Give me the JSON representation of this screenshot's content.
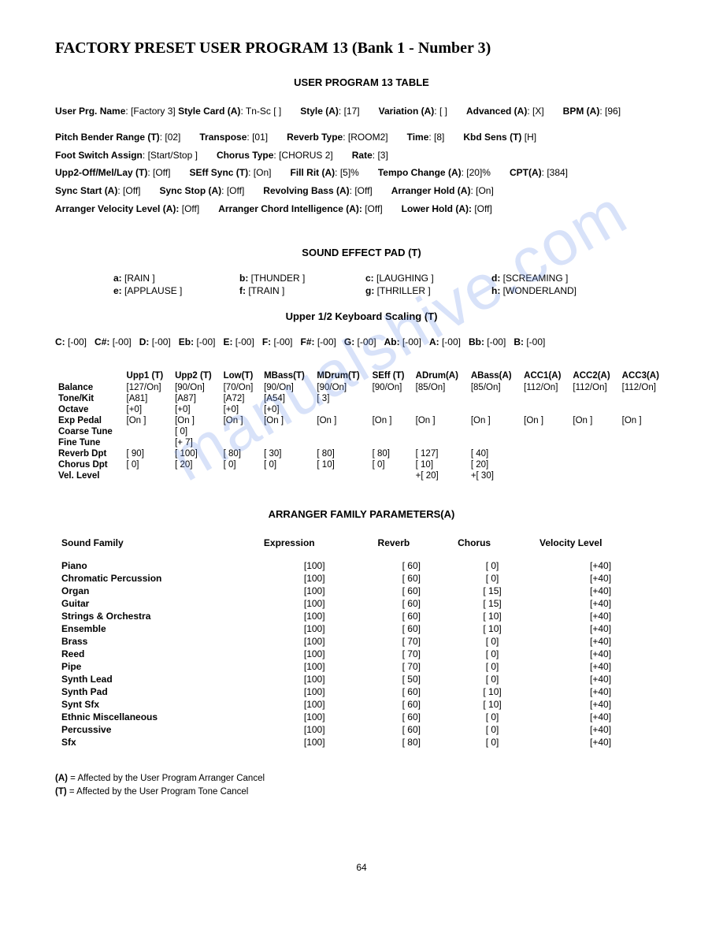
{
  "watermark": "manualshive.com",
  "title": "FACTORY PRESET USER PROGRAM 13 (Bank 1 - Number 3)",
  "table_title": "USER PROGRAM 13 TABLE",
  "header_params": {
    "user_prg_name": "[Factory 3]",
    "style_card": "Tn-Sc [        ]",
    "style": "[17]",
    "variation": "[  ]",
    "advanced": "[X]",
    "bpm": "[96]",
    "pitch_bender_range": "[02]",
    "transpose": "[01]",
    "reverb_type": "[ROOM2]",
    "time": "[8]",
    "kbd_sens": "[H]",
    "foot_switch_assign": "[Start/Stop                           ]",
    "chorus_type": "[CHORUS 2]",
    "rate": "[3]",
    "upp2_off_mel_lay": "[Off]",
    "seff_sync": "[On]",
    "fill_rit": "[5]%",
    "tempo_change": "[20]%",
    "cpt": "[384]",
    "sync_start": "[Off]",
    "sync_stop": "[Off]",
    "revolving_bass": "[Off]",
    "arranger_hold": "[On]",
    "arranger_velocity_level": "[Off]",
    "arranger_chord_intelligence": "[Off]",
    "lower_hold": "[Off]"
  },
  "sfx_title": "SOUND EFFECT PAD (T)",
  "sfx": [
    {
      "k": "a:",
      "v": "[RAIN            ]"
    },
    {
      "k": "b:",
      "v": "[THUNDER    ]"
    },
    {
      "k": "c:",
      "v": "[LAUGHING    ]"
    },
    {
      "k": "d:",
      "v": "[SCREAMING    ]"
    },
    {
      "k": "e:",
      "v": "[APPLAUSE   ]"
    },
    {
      "k": "f:",
      "v": "[TRAIN           ]"
    },
    {
      "k": "g:",
      "v": "[THRILLER     ]"
    },
    {
      "k": "h:",
      "v": "[WONDERLAND]"
    }
  ],
  "scaling_title": "Upper 1/2 Keyboard Scaling (T)",
  "scaling": [
    {
      "n": "C:",
      "v": "[-00]"
    },
    {
      "n": "C#:",
      "v": "[-00]"
    },
    {
      "n": "D:",
      "v": "[-00]"
    },
    {
      "n": "Eb:",
      "v": "[-00]"
    },
    {
      "n": "E:",
      "v": "[-00]"
    },
    {
      "n": "F:",
      "v": "[-00]"
    },
    {
      "n": "F#:",
      "v": "[-00]"
    },
    {
      "n": "G:",
      "v": "[-00]"
    },
    {
      "n": "Ab:",
      "v": "[-00]"
    },
    {
      "n": "A:",
      "v": "[-00]"
    },
    {
      "n": "Bb:",
      "v": "[-00]"
    },
    {
      "n": "B:",
      "v": "[-00]"
    }
  ],
  "tone_headers": [
    "",
    "Upp1 (T)",
    "Upp2 (T)",
    "Low(T)",
    "MBass(T)",
    "MDrum(T)",
    "SEff (T)",
    "ADrum(A)",
    "ABass(A)",
    "ACC1(A)",
    "ACC2(A)",
    "ACC3(A)"
  ],
  "tone_rows": [
    {
      "label": "Balance",
      "cells": [
        "[127/On]",
        "[90/On]",
        "[70/On]",
        "[90/On]",
        "[90/On]",
        "[90/On]",
        "[85/On]",
        "[85/On]",
        "[112/On]",
        "[112/On]",
        "[112/On]"
      ]
    },
    {
      "label": "Tone/Kit",
      "cells": [
        "[A81]",
        "[A87]",
        "[A72]",
        "[A54]",
        "[ 3]",
        "",
        "",
        "",
        "",
        "",
        ""
      ]
    },
    {
      "label": "Octave",
      "cells": [
        "[+0]",
        "[+0]",
        "[+0]",
        "[+0]",
        "",
        "",
        "",
        "",
        "",
        "",
        ""
      ]
    },
    {
      "label": "Exp Pedal",
      "cells": [
        "[On ]",
        "[On ]",
        "[On ]",
        "[On ]",
        "[On ]",
        "[On ]",
        "[On ]",
        "[On ]",
        "[On ]",
        "[On ]",
        "[On ]"
      ]
    },
    {
      "label": "Coarse Tune",
      "cells": [
        "",
        "[   0]",
        "",
        "",
        "",
        "",
        "",
        "",
        "",
        "",
        ""
      ]
    },
    {
      "label": "Fine Tune",
      "cells": [
        "",
        "[+ 7]",
        "",
        "",
        "",
        "",
        "",
        "",
        "",
        "",
        ""
      ]
    },
    {
      "label": "Reverb Dpt",
      "cells": [
        "[  90]",
        "[ 100]",
        "[  80]",
        "[  30]",
        "[  80]",
        "[  80]",
        "[ 127]",
        "[  40]",
        "",
        "",
        ""
      ]
    },
    {
      "label": "Chorus Dpt",
      "cells": [
        "[    0]",
        "[  20]",
        "[    0]",
        "[    0]",
        "[  10]",
        "[    0]",
        "[  10]",
        "[  20]",
        "",
        "",
        ""
      ]
    },
    {
      "label": "Vel. Level",
      "cells": [
        "",
        "",
        "",
        "",
        "",
        "",
        "+[  20]",
        "+[  30]",
        "",
        "",
        ""
      ]
    }
  ],
  "arranger_title": "ARRANGER FAMILY PARAMETERS(A)",
  "arranger_headers": [
    "Sound Family",
    "Expression",
    "Reverb",
    "Chorus",
    "Velocity Level"
  ],
  "arranger_rows": [
    [
      "Piano",
      "[100]",
      "[  60]",
      "[    0]",
      "[+40]"
    ],
    [
      "Chromatic Percussion",
      "[100]",
      "[  60]",
      "[    0]",
      "[+40]"
    ],
    [
      "Organ",
      "[100]",
      "[  60]",
      "[  15]",
      "[+40]"
    ],
    [
      "Guitar",
      "[100]",
      "[  60]",
      "[  15]",
      "[+40]"
    ],
    [
      "Strings & Orchestra",
      "[100]",
      "[  60]",
      "[  10]",
      "[+40]"
    ],
    [
      "Ensemble",
      "[100]",
      "[  60]",
      "[  10]",
      "[+40]"
    ],
    [
      "Brass",
      "[100]",
      "[  70]",
      "[    0]",
      "[+40]"
    ],
    [
      "Reed",
      "[100]",
      "[  70]",
      "[    0]",
      "[+40]"
    ],
    [
      "Pipe",
      "[100]",
      "[  70]",
      "[    0]",
      "[+40]"
    ],
    [
      "Synth Lead",
      "[100]",
      "[  50]",
      "[    0]",
      "[+40]"
    ],
    [
      "Synth Pad",
      "[100]",
      "[  60]",
      "[  10]",
      "[+40]"
    ],
    [
      "Synt Sfx",
      "[100]",
      "[  60]",
      "[  10]",
      "[+40]"
    ],
    [
      "Ethnic Miscellaneous",
      "[100]",
      "[  60]",
      "[    0]",
      "[+40]"
    ],
    [
      "Percussive",
      "[100]",
      "[  60]",
      "[    0]",
      "[+40]"
    ],
    [
      "Sfx",
      "[100]",
      "[  80]",
      "[    0]",
      "[+40]"
    ]
  ],
  "legend_a": "(A) = Affected by the User Program Arranger Cancel",
  "legend_t": "(T) = Affected by the User Program Tone Cancel",
  "page_num": "64"
}
